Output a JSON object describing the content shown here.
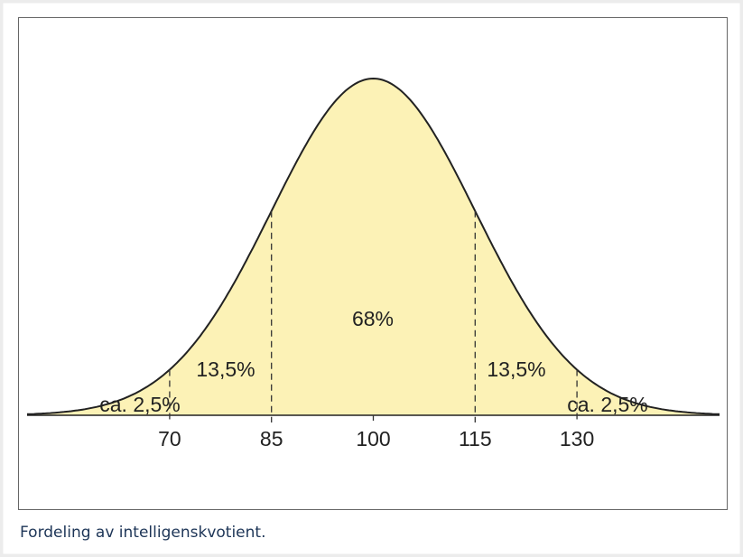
{
  "chart_data": {
    "type": "normal-curve",
    "xlim": [
      49,
      151
    ],
    "xticks": [
      70,
      85,
      100,
      115,
      130
    ],
    "color": "#fcf2b6",
    "annotations": [
      "ca. 2,5%",
      "13,5%",
      "68%",
      "13,5%",
      "ca. 2,5%"
    ]
  },
  "caption": "Fordeling av intelligenskvotient."
}
